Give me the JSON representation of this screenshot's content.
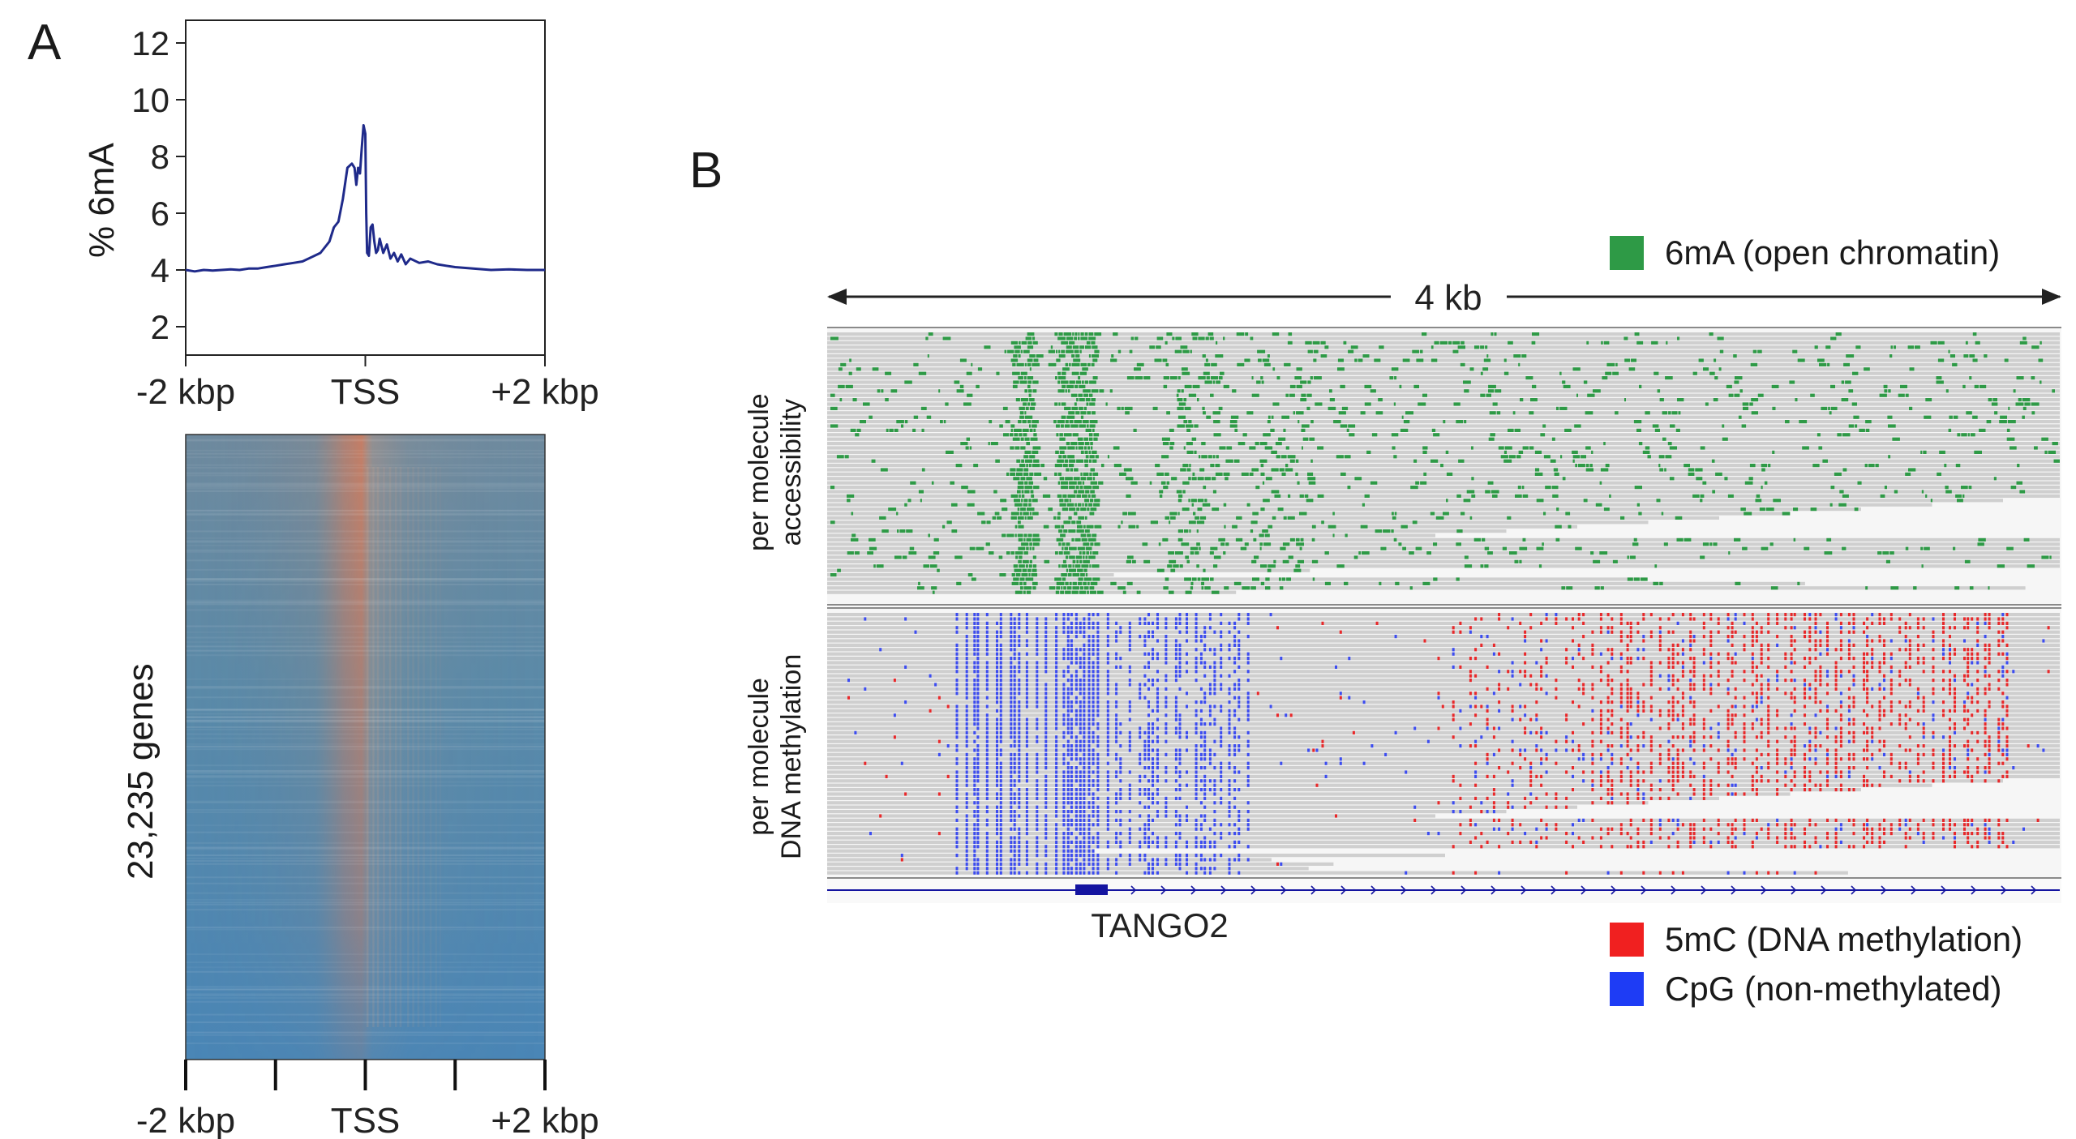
{
  "chart_data": [
    {
      "panel": "A",
      "type": "line",
      "ylabel": "% 6mA",
      "ylim": [
        1,
        12.8
      ],
      "yticks": [
        2,
        4,
        6,
        8,
        10,
        12
      ],
      "xticks": [
        "-2 kbp",
        "TSS",
        "+2 kbp"
      ],
      "xlim": [
        -2000,
        2000
      ],
      "grid": false,
      "color": "#1f2a8a",
      "series": [
        {
          "x": [
            -2000,
            -1900,
            -1800,
            -1700,
            -1600,
            -1500,
            -1400,
            -1300,
            -1200,
            -1100,
            -1000,
            -900,
            -800,
            -700,
            -600,
            -500,
            -400,
            -350,
            -300,
            -250,
            -200,
            -150,
            -120,
            -100,
            -80,
            -60,
            -40,
            -20,
            0,
            10,
            20,
            40,
            60,
            80,
            100,
            120,
            140,
            160,
            200,
            240,
            280,
            320,
            360,
            400,
            450,
            500,
            600,
            700,
            800,
            900,
            1000,
            1200,
            1400,
            1600,
            1800,
            2000
          ],
          "values": [
            4.0,
            3.95,
            4.0,
            3.98,
            4.0,
            4.02,
            4.0,
            4.05,
            4.05,
            4.1,
            4.15,
            4.2,
            4.25,
            4.3,
            4.45,
            4.6,
            5.0,
            5.5,
            5.7,
            6.5,
            7.6,
            7.75,
            7.6,
            7.0,
            7.6,
            7.4,
            8.3,
            9.1,
            8.8,
            6.0,
            4.6,
            4.5,
            5.5,
            5.6,
            5.0,
            4.6,
            4.7,
            5.1,
            4.6,
            4.9,
            4.4,
            4.6,
            4.3,
            4.55,
            4.2,
            4.4,
            4.25,
            4.3,
            4.2,
            4.15,
            4.1,
            4.05,
            4.0,
            4.02,
            4.0,
            4.0
          ]
        }
      ]
    },
    {
      "panel": "A",
      "type": "heatmap",
      "ylabel": "23,235 genes",
      "xticks": [
        "-2 kbp",
        "TSS",
        "+2 kbp"
      ],
      "colors": {
        "low": "#4a86b0",
        "high": "#e0754a"
      }
    },
    {
      "panel": "B",
      "type": "genome browser",
      "scale_label": "4 kb",
      "tracks": [
        {
          "label_line1": "per molecule",
          "label_line2": "accessibility"
        },
        {
          "label_line1": "per molecule",
          "label_line2": "DNA methylation"
        }
      ],
      "gene": "TANGO2",
      "legend": [
        {
          "label": "6mA (open chromatin)",
          "color": "#2e9a46"
        },
        {
          "label": "5mC (DNA methylation)",
          "color": "#f02020"
        },
        {
          "label": "CpG (non-methylated)",
          "color": "#1e3cf5"
        }
      ]
    }
  ],
  "colors": {
    "read_gray": "#cfcfcf",
    "track_bg": "#f4f4f4",
    "green": "#2e9a46",
    "red": "#e8282a",
    "blue": "#3c4cf0",
    "gene": "#1414a0"
  }
}
